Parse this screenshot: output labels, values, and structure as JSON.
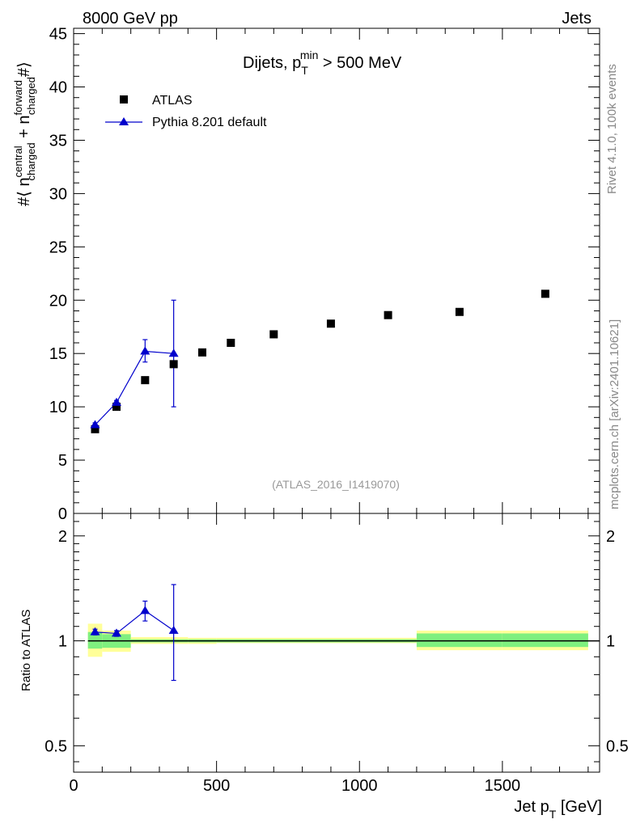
{
  "header": {
    "left": "8000 GeV pp",
    "right": "Jets"
  },
  "side_labels": {
    "rivet": "Rivet 4.1.0,  100k events",
    "mcplots": "mcplots.cern.ch [arXiv:2401.10621]"
  },
  "colors": {
    "data": "#000000",
    "mc": "#0000cc",
    "band_inner": "#7ff07f",
    "band_outer": "#ffff99",
    "watermark": "#999999"
  },
  "chart_data": [
    {
      "type": "scatter",
      "panel": "main",
      "title": "Dijets, p_T^min > 500 MeV",
      "title_parts": {
        "main": "Dijets, p",
        "sub": "T",
        "sup": "min",
        "rest": " > 500 MeV"
      },
      "watermark": "(ATLAS_2016_I1419070)",
      "ylabel_parts": {
        "prefix": "#⟨ n",
        "sup1": "central",
        "sub1": "charged",
        "plus": " + n",
        "sup2": "forward",
        "sub2": "charged",
        "suffix": "#⟩"
      },
      "xlim": [
        0,
        1840
      ],
      "ylim": [
        0,
        45.5
      ],
      "yticks": [
        0,
        5,
        10,
        15,
        20,
        25,
        30,
        35,
        40,
        45
      ],
      "ytick_labels": [
        "0",
        "5",
        "10",
        "15",
        "20",
        "25",
        "30",
        "35",
        "40",
        "45"
      ],
      "legend": {
        "position": "top-left",
        "entries": [
          "ATLAS",
          "Pythia 8.201 default"
        ]
      },
      "series": [
        {
          "name": "ATLAS",
          "marker": "square",
          "x": [
            75,
            150,
            250,
            350,
            450,
            550,
            700,
            900,
            1100,
            1350,
            1650
          ],
          "y": [
            7.9,
            10.0,
            12.5,
            14.0,
            15.1,
            16.0,
            16.8,
            17.8,
            18.6,
            18.9,
            20.6
          ]
        },
        {
          "name": "Pythia 8.201 default",
          "marker": "triangle",
          "x": [
            75,
            150,
            250,
            350
          ],
          "y": [
            8.3,
            10.4,
            15.2,
            15.0
          ],
          "err_low": [
            8.1,
            10.2,
            14.2,
            10.0
          ],
          "err_high": [
            8.5,
            10.6,
            16.3,
            20.0
          ]
        }
      ]
    },
    {
      "type": "line",
      "panel": "ratio",
      "ylabel": "Ratio to ATLAS",
      "xlabel_parts": {
        "main": "Jet p",
        "sub": "T",
        "rest": " [GeV]"
      },
      "xlim": [
        0,
        1840
      ],
      "ylim": [
        0.42,
        2.32
      ],
      "yscale": "log",
      "xticks": [
        0,
        500,
        1000,
        1500
      ],
      "xtick_labels": [
        "0",
        "500",
        "1000",
        "1500"
      ],
      "yticks": [
        0.5,
        1,
        2
      ],
      "ytick_labels": [
        "0.5",
        "1",
        "2"
      ],
      "bands": [
        {
          "x0": 50,
          "x1": 100,
          "outer": [
            0.9,
            1.12
          ],
          "inner": [
            0.95,
            1.06
          ]
        },
        {
          "x0": 100,
          "x1": 200,
          "outer": [
            0.93,
            1.07
          ],
          "inner": [
            0.955,
            1.045
          ]
        },
        {
          "x0": 200,
          "x1": 400,
          "outer": [
            0.98,
            1.025
          ],
          "inner": [
            0.99,
            1.01
          ]
        },
        {
          "x0": 400,
          "x1": 500,
          "outer": [
            0.98,
            1.02
          ],
          "inner": [
            0.99,
            1.01
          ]
        },
        {
          "x0": 500,
          "x1": 1200,
          "outer": [
            0.985,
            1.02
          ],
          "inner": [
            0.99,
            1.01
          ]
        },
        {
          "x0": 1200,
          "x1": 1500,
          "outer": [
            0.94,
            1.07
          ],
          "inner": [
            0.96,
            1.05
          ]
        },
        {
          "x0": 1500,
          "x1": 1800,
          "outer": [
            0.94,
            1.07
          ],
          "inner": [
            0.96,
            1.05
          ]
        }
      ],
      "series": [
        {
          "name": "Pythia 8.201 default",
          "x": [
            75,
            150,
            250,
            350
          ],
          "y": [
            1.06,
            1.05,
            1.22,
            1.07
          ],
          "err_low": [
            1.04,
            1.03,
            1.14,
            0.77
          ],
          "err_high": [
            1.08,
            1.07,
            1.3,
            1.45
          ]
        }
      ]
    }
  ]
}
